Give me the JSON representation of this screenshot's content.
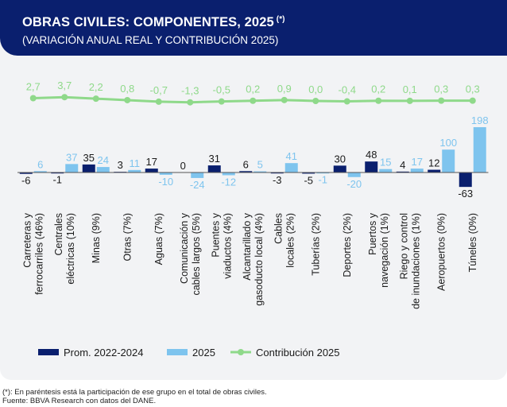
{
  "header": {
    "title": "OBRAS CIVILES: COMPONENTES, 2025",
    "title_mark": "(*)",
    "subtitle": "(VARIACIÓN ANUAL REAL Y CONTRIBUCIÓN 2025)"
  },
  "footnotes": {
    "note": "(*): En paréntesis está la participación de ese grupo en el total de obras civiles.",
    "source": "Fuente: BBVA Research con datos del DANE."
  },
  "chart_data": {
    "type": "bar",
    "categories": [
      [
        "Carreteras y",
        "ferrocarriles (46%)"
      ],
      [
        "Centrales",
        "eléctricas (10%)"
      ],
      [
        "Minas (9%)"
      ],
      [
        "Otras (7%)"
      ],
      [
        "Aguas (7%)"
      ],
      [
        "Comunicación y",
        "cables largos (5%)"
      ],
      [
        "Puentes y",
        "viaductos (4%)"
      ],
      [
        "Alcantarillado y",
        "gasoducto local (4%)"
      ],
      [
        "Cables",
        "locales (2%)"
      ],
      [
        "Tuberías (2%)"
      ],
      [
        "Deportes (2%)"
      ],
      [
        "Puertos y",
        "navegación (1%)"
      ],
      [
        "Riego y control",
        "de inundaciones (1%)"
      ],
      [
        "Aeropuertos (0%)"
      ],
      [
        "Túneles (0%)"
      ]
    ],
    "series": [
      {
        "name": "Prom. 2022-2024",
        "color": "#0a1f6e",
        "values": [
          -6,
          -1,
          35,
          3,
          17,
          0,
          31,
          6,
          -3,
          -5,
          30,
          48,
          4,
          12,
          -63
        ]
      },
      {
        "name": "2025",
        "color": "#7ec4ee",
        "values": [
          6,
          37,
          24,
          11,
          -10,
          -24,
          -12,
          5,
          41,
          -1,
          -20,
          15,
          17,
          100,
          198
        ]
      }
    ],
    "line": {
      "name": "Contribución 2025",
      "color": "#8fd98a",
      "values": [
        2.7,
        3.7,
        2.2,
        0.8,
        -0.7,
        -1.3,
        -0.5,
        0.2,
        0.9,
        0.0,
        -0.4,
        0.2,
        0.1,
        0.3,
        0.3
      ],
      "labels": [
        "2,7",
        "3,7",
        "2,2",
        "0,8",
        "-0,7",
        "-1,3",
        "-0,5",
        "0,2",
        "0,9",
        "0,0",
        "-0,4",
        "0,2",
        "0,1",
        "0,3",
        "0,3"
      ]
    },
    "legend_position": "bottom",
    "grid": false
  }
}
